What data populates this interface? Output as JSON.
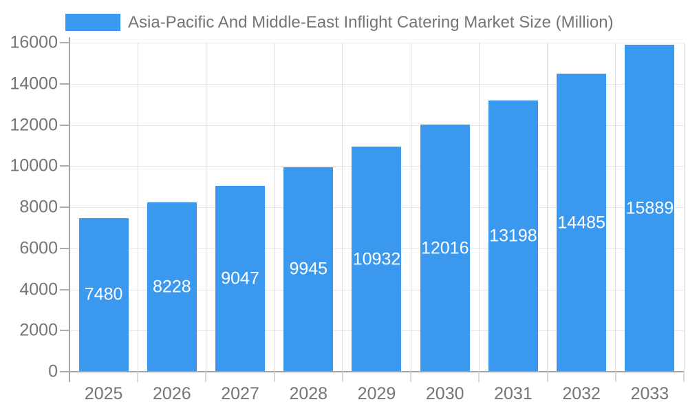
{
  "chart_data": {
    "type": "bar",
    "title": "Asia-Pacific And Middle-East Inflight Catering Market Size (Million)",
    "legend_position": "top-left",
    "categories": [
      "2025",
      "2026",
      "2027",
      "2028",
      "2029",
      "2030",
      "2031",
      "2032",
      "2033"
    ],
    "values": [
      7480,
      8228,
      9047,
      9945,
      10932,
      12016,
      13198,
      14485,
      15889
    ],
    "xlabel": "",
    "ylabel": "",
    "ylim": [
      0,
      16000
    ],
    "yticks": [
      0,
      2000,
      4000,
      6000,
      8000,
      10000,
      12000,
      14000,
      16000
    ],
    "grid": true,
    "colors": {
      "bar": "#3A99EF",
      "bar_label": "#FFFFFF",
      "axis_text": "#757575",
      "axis_line": "#A4A4A4",
      "gridline": "#E6E6E6",
      "column_separator": "#DDDDDD",
      "x_tick": "#D8D8D8",
      "y_tick": "#ABABAB"
    }
  }
}
